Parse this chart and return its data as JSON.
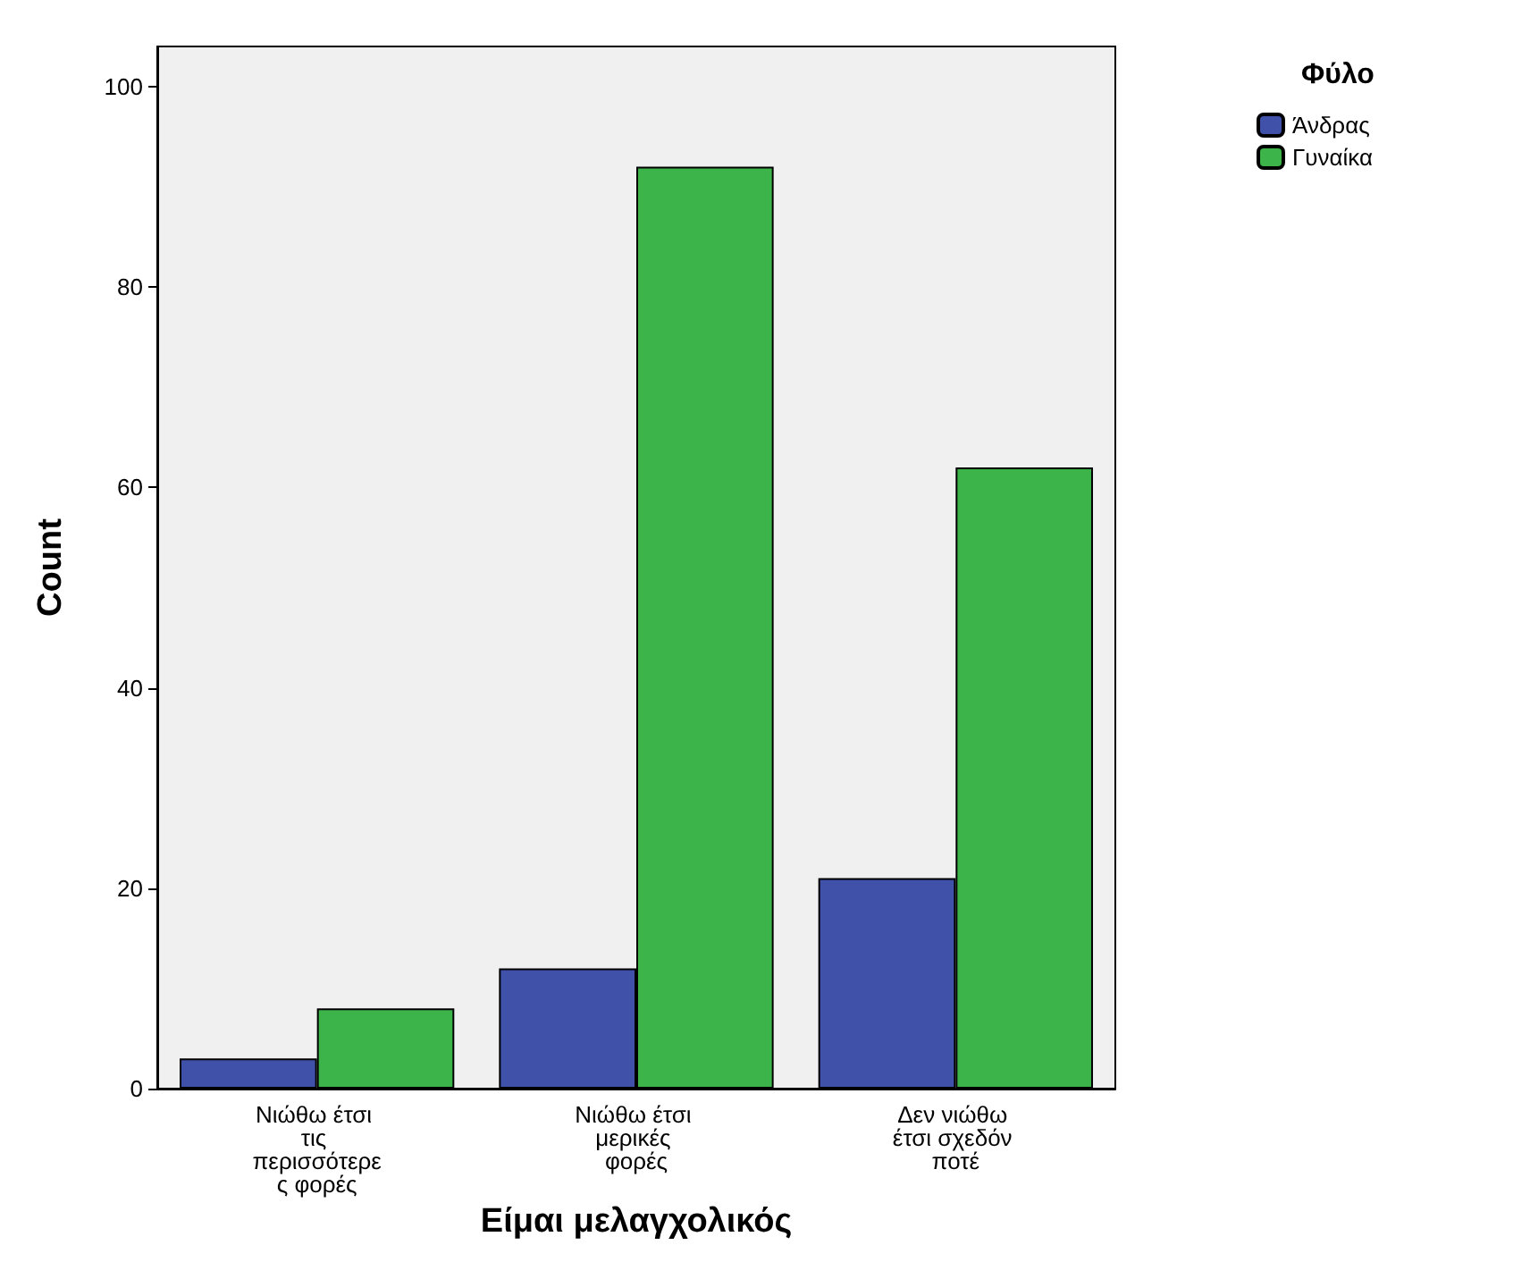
{
  "chart_data": {
    "type": "bar",
    "xlabel": "Είμαι μελαγχολικός",
    "ylabel": "Count",
    "legend_title": "Φύλο",
    "categories": [
      "Νιώθω έτσι τις περισσότερες φορές",
      "Νιώθω έτσι μερικές φορές",
      "Δεν νιώθω έτσι σχεδόν ποτέ"
    ],
    "series": [
      {
        "name": "Άνδρας",
        "color": "#3f51a8",
        "values": [
          3,
          12,
          21
        ]
      },
      {
        "name": "Γυναίκα",
        "color": "#3cb44a",
        "values": [
          8,
          92,
          62
        ]
      }
    ],
    "ylim": [
      0,
      104
    ],
    "yticks": [
      0,
      20,
      40,
      60,
      80,
      100
    ],
    "grid": false,
    "legend": "top right"
  }
}
